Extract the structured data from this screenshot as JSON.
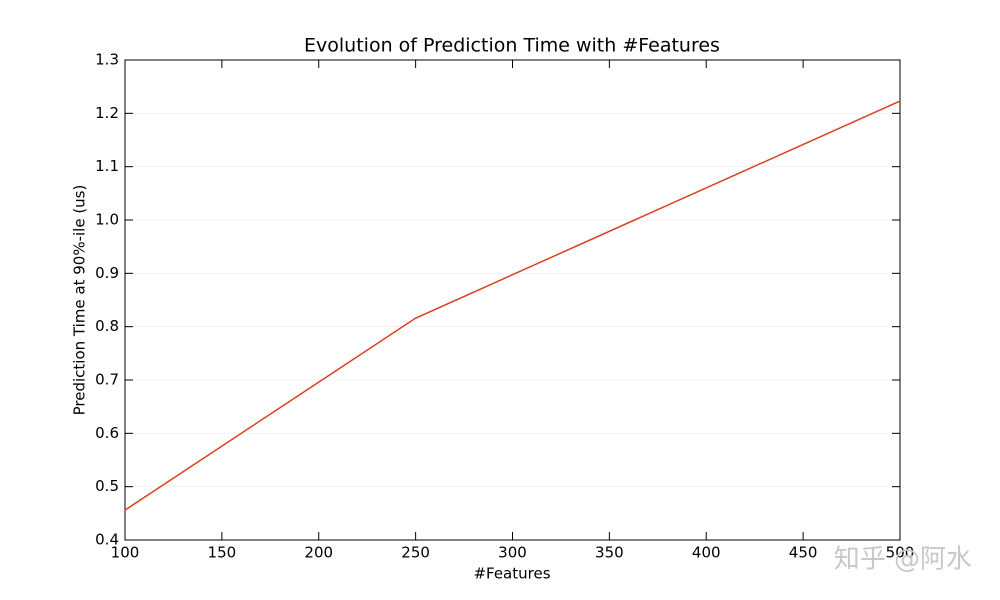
{
  "chart_data": {
    "type": "line",
    "title": "Evolution of Prediction Time with #Features",
    "x_label": "#Features",
    "y_label": "Prediction Time at 90%-ile (us)",
    "x": [
      100,
      250,
      500
    ],
    "series": [
      {
        "name": "Prediction Time",
        "color": "#d9401f",
        "values": [
          0.456,
          0.816,
          1.223
        ]
      }
    ],
    "xlim": [
      100,
      500
    ],
    "xticks": [
      100,
      150,
      200,
      250,
      300,
      350,
      400,
      450,
      500
    ],
    "ylim": [
      0.4,
      1.3
    ],
    "yticks": [
      0.4,
      0.5,
      0.6,
      0.7,
      0.8,
      0.9,
      {
        "value": 1,
        "label": "1.0"
      },
      1.1,
      1.2,
      1.3
    ],
    "grid": true,
    "watermark": "知乎 @阿水"
  }
}
